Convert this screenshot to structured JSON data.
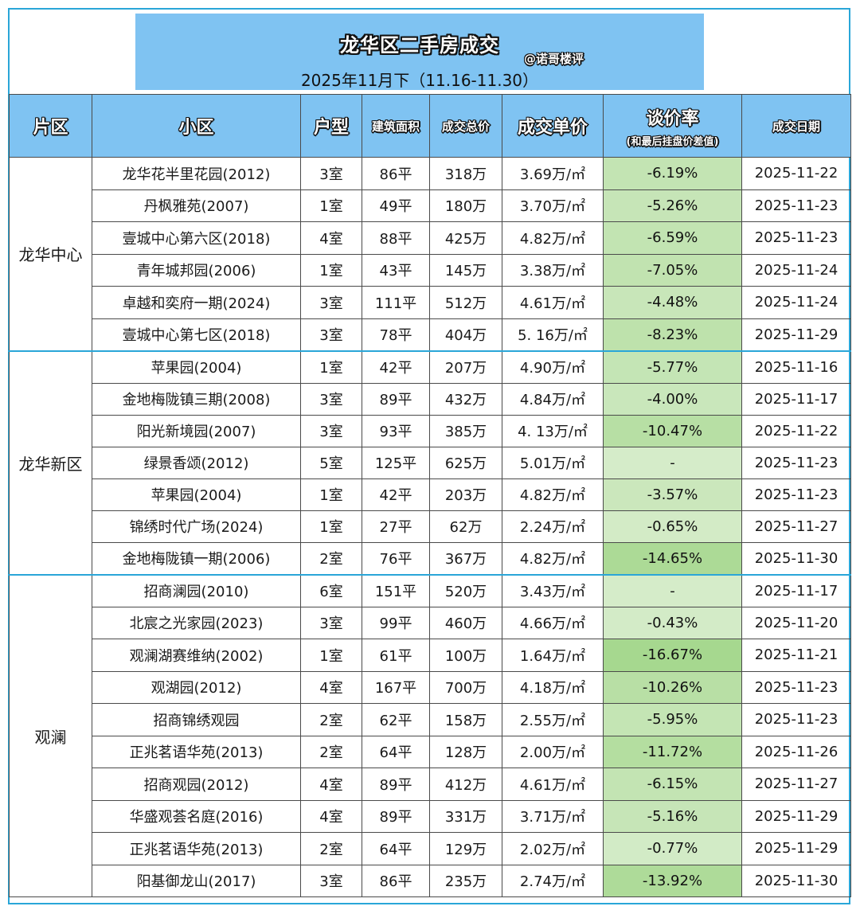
{
  "banner": {
    "title": "龙华区二手房成交",
    "author": "@诺哥楼评",
    "subtitle": "2025年11月下（11.16-11.30）"
  },
  "headers": {
    "zone": "片区",
    "community": "小区",
    "layout": "户型",
    "area": "建筑面积",
    "total": "成交总价",
    "unit_price": "成交单价",
    "rate": "谈价率",
    "rate_sub": "(和最后挂盘价差值)",
    "date": "成交日期"
  },
  "colors": {
    "header_bg": "#7fc3f2",
    "frame": "#2aa6d8",
    "rate_green_strong": "#a6d88f",
    "rate_green_light": "#e4f2dc"
  },
  "groups": [
    {
      "zone": "龙华中心",
      "rows": [
        {
          "community": "龙华花半里花园(2012)",
          "layout": "3室",
          "area": "86平",
          "total": "318万",
          "unit_price": "3.69万/㎡",
          "rate": "-6.19%",
          "rate_value": -6.19,
          "date": "2025-11-22"
        },
        {
          "community": "丹枫雅苑(2007)",
          "layout": "1室",
          "area": "49平",
          "total": "180万",
          "unit_price": "3.70万/㎡",
          "rate": "-5.26%",
          "rate_value": -5.26,
          "date": "2025-11-23"
        },
        {
          "community": "壹城中心第六区(2018)",
          "layout": "4室",
          "area": "88平",
          "total": "425万",
          "unit_price": "4.82万/㎡",
          "rate": "-6.59%",
          "rate_value": -6.59,
          "date": "2025-11-23"
        },
        {
          "community": "青年城邦园(2006)",
          "layout": "1室",
          "area": "43平",
          "total": "145万",
          "unit_price": "3.38万/㎡",
          "rate": "-7.05%",
          "rate_value": -7.05,
          "date": "2025-11-24"
        },
        {
          "community": "卓越和奕府一期(2024)",
          "layout": "3室",
          "area": "111平",
          "total": "512万",
          "unit_price": "4.61万/㎡",
          "rate": "-4.48%",
          "rate_value": -4.48,
          "date": "2025-11-24"
        },
        {
          "community": "壹城中心第七区(2018)",
          "layout": "3室",
          "area": "78平",
          "total": "404万",
          "unit_price": "5. 16万/㎡",
          "rate": "-8.23%",
          "rate_value": -8.23,
          "date": "2025-11-29"
        }
      ]
    },
    {
      "zone": "龙华新区",
      "rows": [
        {
          "community": "苹果园(2004)",
          "layout": "1室",
          "area": "42平",
          "total": "207万",
          "unit_price": "4.90万/㎡",
          "rate": "-5.77%",
          "rate_value": -5.77,
          "date": "2025-11-16"
        },
        {
          "community": "金地梅陇镇三期(2008)",
          "layout": "3室",
          "area": "89平",
          "total": "432万",
          "unit_price": "4.84万/㎡",
          "rate": "-4.00%",
          "rate_value": -4.0,
          "date": "2025-11-17"
        },
        {
          "community": "阳光新境园(2007)",
          "layout": "3室",
          "area": "93平",
          "total": "385万",
          "unit_price": "4. 13万/㎡",
          "rate": "-10.47%",
          "rate_value": -10.47,
          "date": "2025-11-22"
        },
        {
          "community": "绿景香颂(2012)",
          "layout": "5室",
          "area": "125平",
          "total": "625万",
          "unit_price": "5.01万/㎡",
          "rate": "-",
          "rate_value": 0,
          "date": "2025-11-23"
        },
        {
          "community": "苹果园(2004)",
          "layout": "1室",
          "area": "42平",
          "total": "203万",
          "unit_price": "4.82万/㎡",
          "rate": "-3.57%",
          "rate_value": -3.57,
          "date": "2025-11-23"
        },
        {
          "community": "锦绣时代广场(2024)",
          "layout": "1室",
          "area": "27平",
          "total": "62万",
          "unit_price": "2.24万/㎡",
          "rate": "-0.65%",
          "rate_value": -0.65,
          "date": "2025-11-27"
        },
        {
          "community": "金地梅陇镇一期(2006)",
          "layout": "2室",
          "area": "76平",
          "total": "367万",
          "unit_price": "4.82万/㎡",
          "rate": "-14.65%",
          "rate_value": -14.65,
          "date": "2025-11-30"
        }
      ]
    },
    {
      "zone": "观澜",
      "rows": [
        {
          "community": "招商澜园(2010)",
          "layout": "6室",
          "area": "151平",
          "total": "520万",
          "unit_price": "3.43万/㎡",
          "rate": "-",
          "rate_value": 0,
          "date": "2025-11-17"
        },
        {
          "community": "北宸之光家园(2023)",
          "layout": "3室",
          "area": "99平",
          "total": "460万",
          "unit_price": "4.66万/㎡",
          "rate": "-0.43%",
          "rate_value": -0.43,
          "date": "2025-11-20"
        },
        {
          "community": "观澜湖赛维纳(2002)",
          "layout": "1室",
          "area": "61平",
          "total": "100万",
          "unit_price": "1.64万/㎡",
          "rate": "-16.67%",
          "rate_value": -16.67,
          "date": "2025-11-21"
        },
        {
          "community": "观湖园(2012)",
          "layout": "4室",
          "area": "167平",
          "total": "700万",
          "unit_price": "4.18万/㎡",
          "rate": "-10.26%",
          "rate_value": -10.26,
          "date": "2025-11-23"
        },
        {
          "community": "招商锦绣观园",
          "layout": "2室",
          "area": "62平",
          "total": "158万",
          "unit_price": "2.55万/㎡",
          "rate": "-5.95%",
          "rate_value": -5.95,
          "date": "2025-11-23"
        },
        {
          "community": "正兆茗语华苑(2013)",
          "layout": "2室",
          "area": "64平",
          "total": "128万",
          "unit_price": "2.00万/㎡",
          "rate": "-11.72%",
          "rate_value": -11.72,
          "date": "2025-11-26"
        },
        {
          "community": "招商观园(2012)",
          "layout": "4室",
          "area": "89平",
          "total": "412万",
          "unit_price": "4.61万/㎡",
          "rate": "-6.15%",
          "rate_value": -6.15,
          "date": "2025-11-27"
        },
        {
          "community": "华盛观荟名庭(2016)",
          "layout": "4室",
          "area": "89平",
          "total": "331万",
          "unit_price": "3.71万/㎡",
          "rate": "-5.16%",
          "rate_value": -5.16,
          "date": "2025-11-29"
        },
        {
          "community": "正兆茗语华苑(2013)",
          "layout": "2室",
          "area": "64平",
          "total": "129万",
          "unit_price": "2.02万/㎡",
          "rate": "-0.77%",
          "rate_value": -0.77,
          "date": "2025-11-29"
        },
        {
          "community": "阳基御龙山(2017)",
          "layout": "3室",
          "area": "86平",
          "total": "235万",
          "unit_price": "2.74万/㎡",
          "rate": "-13.92%",
          "rate_value": -13.92,
          "date": "2025-11-30"
        }
      ]
    }
  ]
}
